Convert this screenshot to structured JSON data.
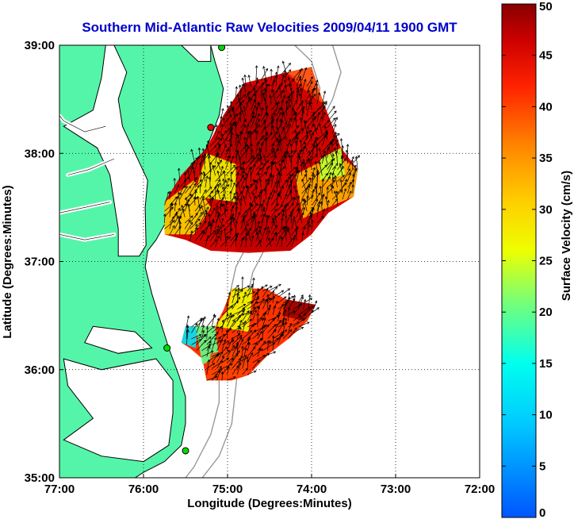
{
  "title": "Southern Mid-Atlantic Raw Velocities 2009/04/11 1900 GMT",
  "x_axis": {
    "label": "Longitude (Degrees:Minutes)",
    "ticks": [
      "77:00",
      "76:00",
      "75:00",
      "74:00",
      "73:00",
      "72:00"
    ]
  },
  "y_axis": {
    "label": "Latitude (Degrees:Minutes)",
    "ticks": [
      "39:00",
      "38:00",
      "37:00",
      "36:00",
      "35:00"
    ]
  },
  "colorbar": {
    "label": "Surface Velocity (cm/s)",
    "ticks": [
      "0",
      "5",
      "10",
      "15",
      "20",
      "25",
      "30",
      "35",
      "40",
      "45",
      "50"
    ],
    "min": 0,
    "max": 50
  },
  "chart_data": {
    "type": "heatmap",
    "title": "Southern Mid-Atlantic Raw Velocities 2009/04/11 1900 GMT",
    "xlabel": "Longitude (Degrees:Minutes)",
    "ylabel": "Latitude (Degrees:Minutes)",
    "xlim": [
      -77,
      -72
    ],
    "ylim": [
      35,
      39
    ],
    "grid": true,
    "colorbar_range": [
      0,
      50
    ],
    "colorbar_label": "Surface Velocity (cm/s)",
    "colors": {
      "land": "#55f5a9",
      "coastline": "#000000",
      "bathymetry": "#999999",
      "title": "#0000cc",
      "station": "#00dd00",
      "station_alt": "#ee0000"
    },
    "regions": [
      {
        "polygon": [
          [
            -75.75,
            37.25
          ],
          [
            -75.75,
            37.55
          ],
          [
            -75.55,
            37.8
          ],
          [
            -75.25,
            38.05
          ],
          [
            -75.05,
            38.35
          ],
          [
            -74.8,
            38.65
          ],
          [
            -74.3,
            38.75
          ],
          [
            -74.05,
            38.65
          ],
          [
            -73.85,
            38.45
          ],
          [
            -73.65,
            38.05
          ],
          [
            -73.45,
            37.85
          ],
          [
            -73.5,
            37.6
          ],
          [
            -73.8,
            37.45
          ],
          [
            -74.0,
            37.25
          ],
          [
            -74.25,
            37.1
          ],
          [
            -74.75,
            37.08
          ],
          [
            -75.2,
            37.1
          ],
          [
            -75.5,
            37.2
          ]
        ],
        "zones": [
          {
            "poly": [
              [
                -75.75,
                37.25
              ],
              [
                -75.75,
                37.55
              ],
              [
                -75.4,
                37.75
              ],
              [
                -75.2,
                37.5
              ],
              [
                -75.4,
                37.25
              ]
            ],
            "speed": 30
          },
          {
            "poly": [
              [
                -75.4,
                37.6
              ],
              [
                -74.9,
                37.55
              ],
              [
                -74.9,
                37.9
              ],
              [
                -75.25,
                38.0
              ]
            ],
            "speed": 27
          },
          {
            "poly": [
              [
                -74.9,
                37.9
              ],
              [
                -74.3,
                37.95
              ],
              [
                -74.2,
                38.55
              ],
              [
                -74.8,
                38.65
              ],
              [
                -75.05,
                38.35
              ]
            ],
            "speed": 48
          },
          {
            "poly": [
              [
                -74.1,
                38.6
              ],
              [
                -74.3,
                38.75
              ],
              [
                -74.0,
                38.8
              ],
              [
                -73.85,
                38.45
              ]
            ],
            "speed": 40
          },
          {
            "poly": [
              [
                -74.1,
                37.4
              ],
              [
                -73.5,
                37.6
              ],
              [
                -73.45,
                37.85
              ],
              [
                -73.7,
                38.0
              ],
              [
                -74.2,
                37.8
              ]
            ],
            "speed": 33
          },
          {
            "poly": [
              [
                -74.9,
                37.1
              ],
              [
                -74.25,
                37.1
              ],
              [
                -74.2,
                37.4
              ],
              [
                -74.8,
                37.45
              ]
            ],
            "speed": 47
          },
          {
            "poly": [
              [
                -73.9,
                37.95
              ],
              [
                -73.65,
                38.05
              ],
              [
                -73.6,
                37.8
              ],
              [
                -73.9,
                37.75
              ]
            ],
            "speed": 24
          }
        ],
        "base_speed": 46,
        "mean_direction_deg": 75
      },
      {
        "polygon": [
          [
            -75.55,
            36.25
          ],
          [
            -75.5,
            36.4
          ],
          [
            -75.15,
            36.4
          ],
          [
            -75.05,
            36.55
          ],
          [
            -74.95,
            36.75
          ],
          [
            -74.55,
            36.75
          ],
          [
            -74.3,
            36.65
          ],
          [
            -73.95,
            36.6
          ],
          [
            -74.05,
            36.45
          ],
          [
            -74.25,
            36.3
          ],
          [
            -74.5,
            36.15
          ],
          [
            -74.75,
            35.95
          ],
          [
            -74.95,
            35.9
          ],
          [
            -75.25,
            35.9
          ],
          [
            -75.3,
            36.1
          ],
          [
            -75.45,
            36.2
          ]
        ],
        "zones": [
          {
            "poly": [
              [
                -75.55,
                36.25
              ],
              [
                -75.5,
                36.4
              ],
              [
                -75.35,
                36.4
              ],
              [
                -75.38,
                36.2
              ]
            ],
            "speed": 12
          },
          {
            "poly": [
              [
                -75.38,
                36.4
              ],
              [
                -75.15,
                36.4
              ],
              [
                -75.1,
                36.1
              ],
              [
                -75.3,
                36.05
              ]
            ],
            "speed": 20
          },
          {
            "poly": [
              [
                -75.15,
                36.4
              ],
              [
                -75.0,
                36.55
              ],
              [
                -74.95,
                36.75
              ],
              [
                -74.7,
                36.75
              ],
              [
                -74.75,
                36.35
              ]
            ],
            "speed": 26
          },
          {
            "poly": [
              [
                -75.25,
                35.9
              ],
              [
                -74.75,
                35.95
              ],
              [
                -74.8,
                36.2
              ],
              [
                -75.2,
                36.15
              ]
            ],
            "speed": 40
          },
          {
            "poly": [
              [
                -74.3,
                36.65
              ],
              [
                -73.95,
                36.6
              ],
              [
                -74.1,
                36.45
              ],
              [
                -74.35,
                36.5
              ]
            ],
            "speed": 49
          }
        ],
        "base_speed": 41,
        "mean_direction_deg": 55
      }
    ]
  }
}
